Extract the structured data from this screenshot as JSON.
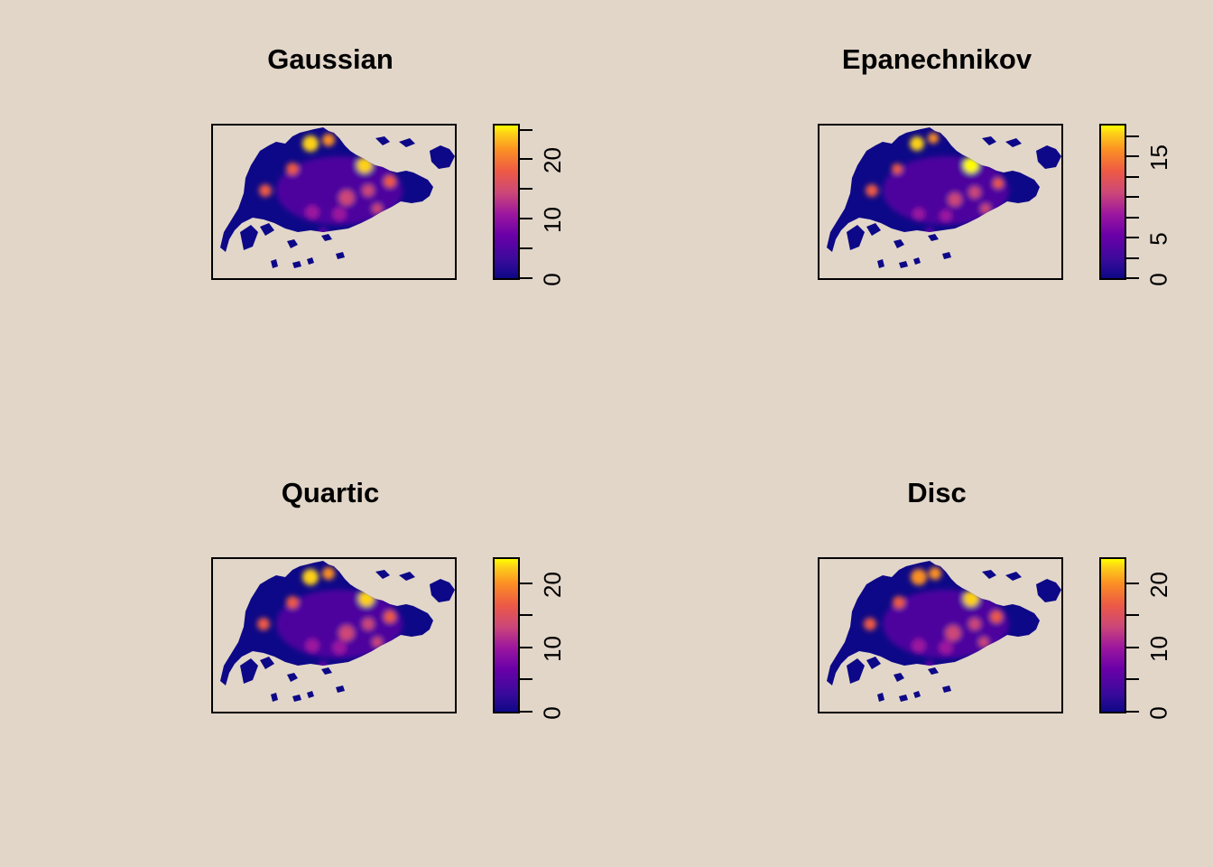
{
  "chart_data": [
    {
      "type": "heatmap",
      "title": "Gaussian",
      "colorbar": {
        "ticks": [
          0,
          5,
          10,
          15,
          20,
          25
        ],
        "labels": [
          "0",
          "10",
          "20"
        ],
        "range": [
          0,
          26
        ]
      },
      "colormap": "plasma"
    },
    {
      "type": "heatmap",
      "title": "Epanechnikov",
      "colorbar": {
        "ticks": [
          0,
          2.5,
          5,
          7.5,
          10,
          12.5,
          15,
          17.5
        ],
        "labels": [
          "0",
          "5",
          "15"
        ],
        "range": [
          0,
          19
        ]
      },
      "colormap": "plasma"
    },
    {
      "type": "heatmap",
      "title": "Quartic",
      "colorbar": {
        "ticks": [
          0,
          5,
          10,
          15,
          20
        ],
        "labels": [
          "0",
          "10",
          "20"
        ],
        "range": [
          0,
          24
        ]
      },
      "colormap": "plasma"
    },
    {
      "type": "heatmap",
      "title": "Disc",
      "colorbar": {
        "ticks": [
          0,
          5,
          10,
          15,
          20
        ],
        "labels": [
          "0",
          "10",
          "20"
        ],
        "range": [
          0,
          24
        ]
      },
      "colormap": "plasma"
    }
  ],
  "colors": {
    "background": "#e2d6c9",
    "low": "#0d0887",
    "mid": "#cc4778",
    "high": "#ffff00"
  }
}
